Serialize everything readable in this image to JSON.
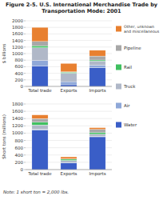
{
  "chart_data": [
    {
      "type": "bar",
      "stacked": true,
      "title": "Figure 2-5.  U.S. International Merchandise Trade by\nTransportation Mode: 2001",
      "ylabel": "$ billions",
      "categories": [
        "Total trade",
        "Exports",
        "Imports"
      ],
      "ylim": [
        0,
        2000
      ],
      "yticks": [
        0,
        200,
        400,
        600,
        800,
        1000,
        1200,
        1400,
        1600,
        1800,
        2000
      ],
      "grid": true,
      "legend": "right",
      "series": [
        {
          "name": "Water",
          "color": "#3a5ec7",
          "values": [
            620,
            50,
            570
          ]
        },
        {
          "name": "Air",
          "color": "#8fa8d8",
          "values": [
            170,
            95,
            75
          ]
        },
        {
          "name": "Truck",
          "color": "#b0b8c8",
          "values": [
            390,
            260,
            130
          ]
        },
        {
          "name": "Rail",
          "color": "#40c060",
          "values": [
            60,
            30,
            30
          ]
        },
        {
          "name": "Pipeline",
          "color": "#a8a8a8",
          "values": [
            130,
            10,
            120
          ]
        },
        {
          "name": "Other, unknown\nand miscellaneous",
          "color": "#e88030",
          "values": [
            430,
            255,
            175
          ]
        }
      ]
    },
    {
      "type": "bar",
      "stacked": true,
      "ylabel": "Short tons (millions)",
      "annotations": [
        "Note:  1 short ton = 2,000 lbs."
      ],
      "categories": [
        "Total trade",
        "Exports",
        "Imports"
      ],
      "ylim": [
        0,
        1800
      ],
      "yticks": [
        0,
        200,
        400,
        600,
        800,
        1000,
        1200,
        1400,
        1600,
        1800
      ],
      "grid": true,
      "series": [
        {
          "name": "Water",
          "color": "#3a5ec7",
          "values": [
            1080,
            180,
            900
          ]
        },
        {
          "name": "Air",
          "color": "#8fa8d8",
          "values": [
            25,
            12,
            13
          ]
        },
        {
          "name": "Truck",
          "color": "#b0b8c8",
          "values": [
            120,
            60,
            60
          ]
        },
        {
          "name": "Rail",
          "color": "#40c060",
          "values": [
            75,
            35,
            40
          ]
        },
        {
          "name": "Pipeline",
          "color": "#a8a8a8",
          "values": [
            100,
            8,
            92
          ]
        },
        {
          "name": "Other, unknown\nand miscellaneous",
          "color": "#e88030",
          "values": [
            100,
            55,
            45
          ]
        }
      ]
    }
  ]
}
